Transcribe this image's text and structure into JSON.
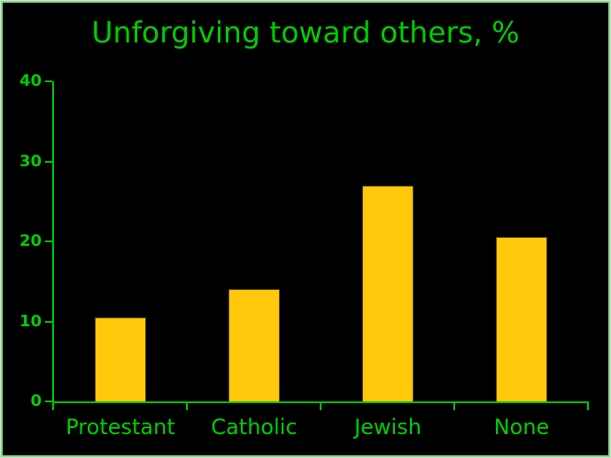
{
  "frame": {
    "background": "#000000",
    "border_outer_color": "#c9e7c9",
    "border_inner_color": "#8ed88e"
  },
  "colors": {
    "text_green": "#00CE00",
    "axis_green": "#00C400",
    "bar_fill": "#FFC80A",
    "bar_border": "#5A4A00"
  },
  "chart_data": {
    "type": "bar",
    "title": "Unforgiving toward others, %",
    "categories": [
      "Protestant",
      "Catholic",
      "Jewish",
      "None"
    ],
    "values": [
      10.5,
      14,
      27,
      20.5
    ],
    "xlabel": "",
    "ylabel": "",
    "ylim": [
      0,
      40
    ],
    "yticks": [
      0,
      10,
      20,
      30,
      40
    ],
    "grid": false,
    "legend": false,
    "bar_color": "#FFC80A",
    "bar_border_color": "#5A4A00",
    "axis_color": "#00C400",
    "text_color": "#00CE00",
    "background": "#000000"
  }
}
